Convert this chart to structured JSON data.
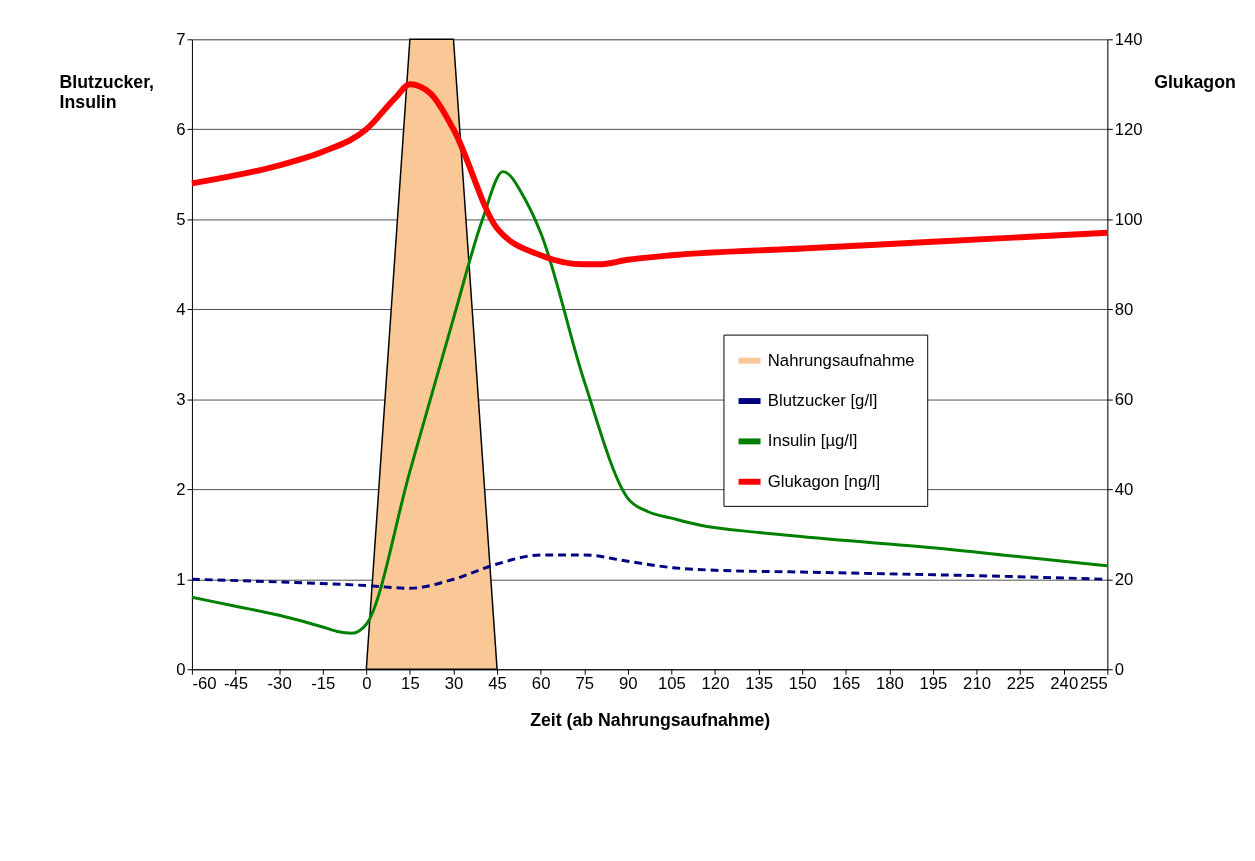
{
  "chart_data": {
    "type": "line",
    "xlabel": "Zeit (ab Nahrungsaufnahme)",
    "ylabel": "Blutzucker, Insulin",
    "y2label": "Glukagon",
    "xlim": [
      -60,
      255
    ],
    "xticks": [
      -60,
      -45,
      -30,
      -15,
      0,
      15,
      30,
      45,
      60,
      75,
      90,
      105,
      120,
      135,
      150,
      165,
      180,
      195,
      210,
      225,
      240,
      255
    ],
    "ylim": [
      0,
      7
    ],
    "yticks": [
      0,
      1,
      2,
      3,
      4,
      5,
      6,
      7
    ],
    "y2lim": [
      0,
      140
    ],
    "y2ticks": [
      0,
      20,
      40,
      60,
      80,
      100,
      120,
      140
    ],
    "grid": "y",
    "legend": "right",
    "marker": "none",
    "series": [
      {
        "name": "Nahrungsaufnahme",
        "type": "area",
        "color": "#fac896",
        "x": [
          0,
          15,
          30,
          45
        ],
        "values": [
          0,
          7,
          7,
          0
        ]
      },
      {
        "name": "Blutzucker [g/l]",
        "line_style": "dashed",
        "color": "#000080",
        "x": [
          -60,
          -30,
          0,
          15,
          30,
          45,
          60,
          75,
          90,
          105,
          120,
          150,
          180,
          210,
          255
        ],
        "values": [
          1.0,
          0.97,
          0.93,
          0.9,
          1.0,
          1.17,
          1.27,
          1.27,
          1.2,
          1.13,
          1.1,
          1.08,
          1.06,
          1.04,
          1.0
        ]
      },
      {
        "name": "Insulin [µg/l]",
        "line_style": "solid",
        "color": "#008000",
        "x": [
          -60,
          -45,
          -30,
          -15,
          -10,
          -5,
          0,
          15,
          30,
          40,
          47,
          55,
          60,
          75,
          90,
          97,
          105,
          115,
          135,
          165,
          195,
          225,
          255
        ],
        "values": [
          0.8,
          0.7,
          0.6,
          0.47,
          0.42,
          0.4,
          0.5,
          2.2,
          3.9,
          5.0,
          5.53,
          5.2,
          4.85,
          3.2,
          1.9,
          1.75,
          1.68,
          1.6,
          1.52,
          1.43,
          1.35,
          1.25,
          1.15
        ]
      },
      {
        "name": "Glukagon [ng/l]",
        "line_style": "solid",
        "axis": "y2",
        "color": "#ff0000",
        "x": [
          -60,
          -30,
          -15,
          0,
          10,
          15,
          22,
          30,
          45,
          60,
          75,
          80,
          90,
          105,
          150,
          195,
          255
        ],
        "values": [
          108,
          112,
          115,
          120,
          127,
          130,
          128,
          120,
          98,
          92,
          90,
          90,
          91,
          92,
          93.5,
          95,
          97
        ]
      }
    ]
  }
}
